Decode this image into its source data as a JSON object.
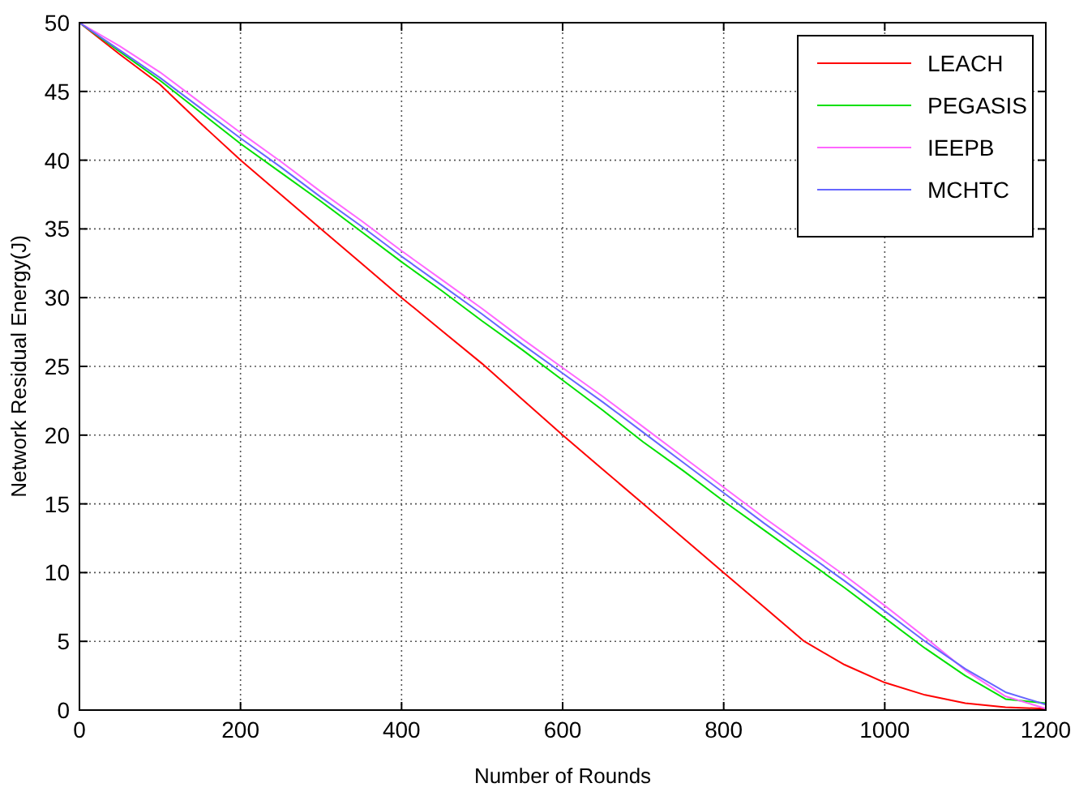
{
  "chart_data": {
    "type": "line",
    "xlabel": "Number of Rounds",
    "ylabel": "Network Residual Energy(J)",
    "x": [
      0,
      50,
      100,
      150,
      200,
      250,
      300,
      350,
      400,
      450,
      500,
      550,
      600,
      650,
      700,
      750,
      800,
      850,
      900,
      950,
      1000,
      1050,
      1100,
      1150,
      1200
    ],
    "xlim": [
      0,
      1200
    ],
    "xticks": [
      0,
      200,
      400,
      600,
      800,
      1000,
      1200
    ],
    "ylim": [
      0,
      50
    ],
    "yticks": [
      0,
      5,
      10,
      15,
      20,
      25,
      30,
      35,
      40,
      45,
      50
    ],
    "grid": true,
    "legend": "top right",
    "line_style": "solid",
    "series": [
      {
        "name": "LEACH",
        "color": "#ff0000",
        "values": [
          50,
          47.7,
          45.5,
          42.7,
          40,
          37.5,
          35,
          32.5,
          30,
          27.6,
          25.2,
          22.6,
          20,
          17.5,
          15,
          12.5,
          10,
          7.5,
          5,
          3.3,
          2,
          1.1,
          0.5,
          0.2,
          0.1
        ]
      },
      {
        "name": "PEGASIS",
        "color": "#00e000",
        "values": [
          50,
          47.9,
          45.8,
          43.5,
          41.2,
          39.1,
          37,
          34.8,
          32.6,
          30.5,
          28.3,
          26.2,
          24,
          21.8,
          19.5,
          17.4,
          15.2,
          13.1,
          11,
          8.9,
          6.7,
          4.5,
          2.5,
          0.8,
          0.5
        ]
      },
      {
        "name": "IEEPB",
        "color": "#ff66ff",
        "values": [
          50,
          48.3,
          46.4,
          44.2,
          42,
          39.9,
          37.7,
          35.6,
          33.4,
          31.3,
          29.2,
          27,
          24.9,
          22.8,
          20.6,
          18.4,
          16.2,
          14,
          11.9,
          9.8,
          7.6,
          5.3,
          2.9,
          1,
          0.1
        ]
      },
      {
        "name": "MCHTC",
        "color": "#6666ff",
        "values": [
          50,
          48,
          46,
          43.8,
          41.6,
          39.5,
          37.3,
          35.2,
          33,
          30.9,
          28.8,
          26.6,
          24.5,
          22.4,
          20.2,
          18,
          15.8,
          13.6,
          11.5,
          9.4,
          7.2,
          5,
          3,
          1.3,
          0.4
        ]
      }
    ]
  }
}
